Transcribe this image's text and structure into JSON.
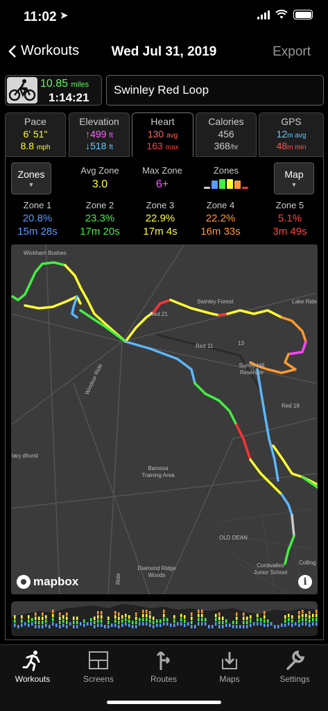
{
  "status": {
    "time": "11:02"
  },
  "nav": {
    "back_label": "Workouts",
    "title": "Wed Jul 31, 2019",
    "export_label": "Export"
  },
  "workout": {
    "distance_value": "10.85",
    "distance_unit": "miles",
    "duration": "1:14:21",
    "name": "Swinley Red Loop",
    "activity_icon": "cycling-icon"
  },
  "tabs": [
    {
      "label": "Pace",
      "v1": "6' 51\"",
      "v1_unit": "",
      "v2": "8.8",
      "v2_unit": "mph",
      "v1_color": "#ffff33",
      "v2_color": "#ffff33"
    },
    {
      "label": "Elevation",
      "v1": "↑499",
      "v1_unit": "ft",
      "v2": "↓518",
      "v2_unit": "ft",
      "v1_color": "#ff66ff",
      "v2_color": "#66ccff"
    },
    {
      "label": "Heart",
      "v1": "130",
      "v1_unit": "avg",
      "v2": "163",
      "v2_unit": "max",
      "v1_color": "#ff6666",
      "v2_color": "#ff4444"
    },
    {
      "label": "Calories",
      "v1": "456",
      "v1_unit": "",
      "v2": "368",
      "v2_unit": "/hr",
      "v1_color": "#cccccc",
      "v2_color": "#cccccc"
    },
    {
      "label": "GPS",
      "v1": "12",
      "v1_unit": "m avg",
      "v2": "48",
      "v2_unit": "m min",
      "v1_color": "#66ccff",
      "v2_color": "#ff5555"
    }
  ],
  "heart": {
    "zones_button": "Zones",
    "map_button": "Map",
    "avg_zone_label": "Avg Zone",
    "avg_zone_value": "3.0",
    "max_zone_label": "Max Zone",
    "max_zone_value": "6+",
    "zones_label": "Zones",
    "zones": [
      {
        "label": "Zone 1",
        "percent": "20.8%",
        "time": "15m 28s",
        "color": "#5b9bff"
      },
      {
        "label": "Zone 2",
        "percent": "23.3%",
        "time": "17m 20s",
        "color": "#44ee44"
      },
      {
        "label": "Zone 3",
        "percent": "22.9%",
        "time": "17m 4s",
        "color": "#ffff33"
      },
      {
        "label": "Zone 4",
        "percent": "22.2%",
        "time": "16m 33s",
        "color": "#ff9933"
      },
      {
        "label": "Zone 5",
        "percent": "5.1%",
        "time": "3m 49s",
        "color": "#ff3333"
      }
    ]
  },
  "map": {
    "attribution": "mapbox",
    "labels": [
      "Wickham Bushes",
      "Swinley Forest",
      "Lake Ride",
      "Red 21",
      "Red 11",
      "13",
      "Surrey Hill Reservoir",
      "Red 18",
      "Windsor Ride",
      "tary dhurst",
      "Barossa Training Area",
      "OLD DEAN",
      "Cordwalles Junior School",
      "Diamond Ridge Woods",
      "Ride",
      "Colling"
    ]
  },
  "tabbar": [
    {
      "label": "Workouts",
      "icon": "running-icon"
    },
    {
      "label": "Screens",
      "icon": "screens-icon"
    },
    {
      "label": "Routes",
      "icon": "routes-icon"
    },
    {
      "label": "Maps",
      "icon": "maps-icon"
    },
    {
      "label": "Settings",
      "icon": "wrench-icon"
    }
  ]
}
